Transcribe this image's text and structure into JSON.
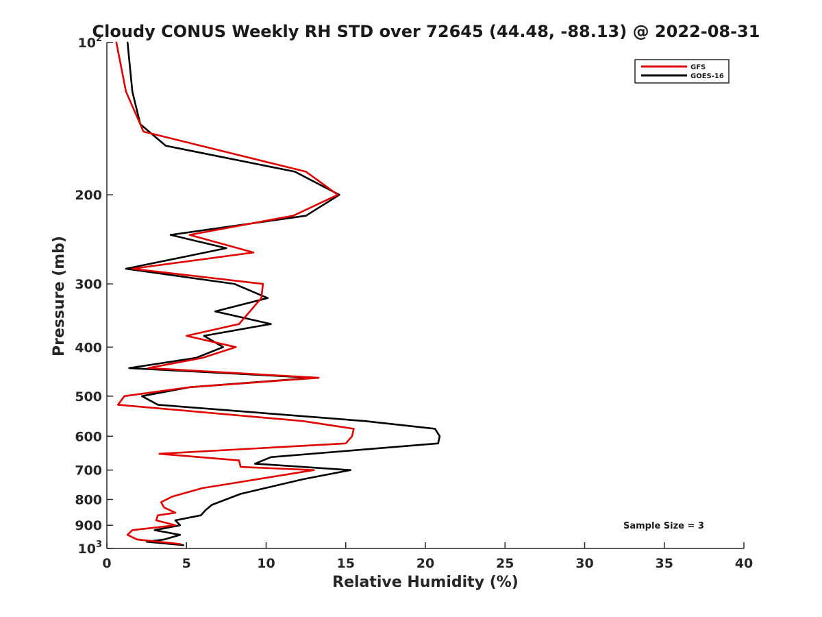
{
  "chart_data": {
    "type": "line",
    "title": "Cloudy CONUS Weekly RH STD over 72645 (44.48, -88.13) @ 2022-08-31",
    "xlabel": "Relative Humidity (%)",
    "ylabel": "Pressure (mb)",
    "xlim": [
      0,
      40
    ],
    "ylim": [
      100,
      1000
    ],
    "yscale": "log",
    "yreversed": true,
    "grid": false,
    "legend_position": "top-right",
    "x_ticks": [
      "0",
      "5",
      "10",
      "15",
      "20",
      "25",
      "30",
      "35",
      "40"
    ],
    "y_ticks": [
      {
        "value": 100,
        "base": "10",
        "exp": "2"
      },
      {
        "value": 200,
        "label": "200"
      },
      {
        "value": 300,
        "label": "300"
      },
      {
        "value": 400,
        "label": "400"
      },
      {
        "value": 500,
        "label": "500"
      },
      {
        "value": 600,
        "label": "600"
      },
      {
        "value": 700,
        "label": "700"
      },
      {
        "value": 800,
        "label": "800"
      },
      {
        "value": 900,
        "label": "900"
      },
      {
        "value": 1000,
        "base": "10",
        "exp": "3"
      }
    ],
    "annotation": "Sample Size = 3",
    "series": [
      {
        "name": "GFS",
        "color": "#e00000",
        "points": [
          [
            0.6,
            100
          ],
          [
            1.2,
            125
          ],
          [
            2.3,
            150
          ],
          [
            12.5,
            180
          ],
          [
            14.5,
            200
          ],
          [
            11.7,
            220
          ],
          [
            5.2,
            240
          ],
          [
            9.2,
            260
          ],
          [
            1.6,
            280
          ],
          [
            9.8,
            300
          ],
          [
            9.7,
            320
          ],
          [
            8.3,
            360
          ],
          [
            5.0,
            380
          ],
          [
            8.1,
            400
          ],
          [
            6.0,
            420
          ],
          [
            2.6,
            440
          ],
          [
            13.3,
            460
          ],
          [
            5.2,
            480
          ],
          [
            1.1,
            500
          ],
          [
            0.7,
            520
          ],
          [
            12.3,
            560
          ],
          [
            15.5,
            580
          ],
          [
            15.4,
            600
          ],
          [
            15.0,
            620
          ],
          [
            3.3,
            650
          ],
          [
            8.3,
            670
          ],
          [
            8.4,
            690
          ],
          [
            13.0,
            700
          ],
          [
            6.0,
            760
          ],
          [
            4.1,
            790
          ],
          [
            3.4,
            810
          ],
          [
            3.6,
            830
          ],
          [
            4.3,
            850
          ],
          [
            3.2,
            860
          ],
          [
            3.1,
            880
          ],
          [
            4.3,
            900
          ],
          [
            1.6,
            920
          ],
          [
            1.3,
            940
          ],
          [
            1.9,
            960
          ],
          [
            4.6,
            980
          ]
        ]
      },
      {
        "name": "GOES-16",
        "color": "#000000",
        "points": [
          [
            1.3,
            100
          ],
          [
            1.6,
            125
          ],
          [
            2.1,
            145
          ],
          [
            3.7,
            160
          ],
          [
            11.8,
            180
          ],
          [
            14.6,
            200
          ],
          [
            12.5,
            220
          ],
          [
            4.0,
            240
          ],
          [
            7.5,
            255
          ],
          [
            1.2,
            280
          ],
          [
            8.0,
            300
          ],
          [
            10.1,
            320
          ],
          [
            6.8,
            340
          ],
          [
            10.3,
            360
          ],
          [
            6.1,
            380
          ],
          [
            7.3,
            400
          ],
          [
            5.6,
            420
          ],
          [
            1.4,
            440
          ],
          [
            13.0,
            460
          ],
          [
            5.2,
            480
          ],
          [
            2.2,
            500
          ],
          [
            3.2,
            520
          ],
          [
            16.2,
            560
          ],
          [
            20.6,
            580
          ],
          [
            20.9,
            600
          ],
          [
            20.8,
            620
          ],
          [
            10.3,
            660
          ],
          [
            9.3,
            680
          ],
          [
            15.3,
            700
          ],
          [
            12.3,
            730
          ],
          [
            8.4,
            780
          ],
          [
            6.6,
            820
          ],
          [
            6.2,
            840
          ],
          [
            5.9,
            860
          ],
          [
            4.3,
            880
          ],
          [
            4.6,
            900
          ],
          [
            3.0,
            920
          ],
          [
            4.6,
            940
          ],
          [
            3.6,
            960
          ],
          [
            2.5,
            970
          ],
          [
            4.8,
            985
          ]
        ]
      }
    ]
  }
}
